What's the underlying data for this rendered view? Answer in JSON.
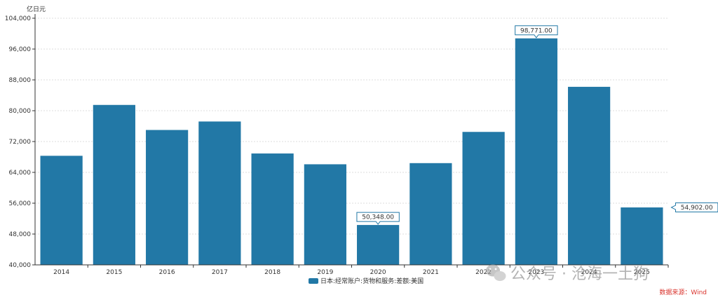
{
  "chart_data": {
    "type": "bar",
    "unit_label": "亿日元",
    "categories": [
      "2014",
      "2015",
      "2016",
      "2017",
      "2018",
      "2019",
      "2020",
      "2021",
      "2022",
      "2023",
      "2024",
      "2025"
    ],
    "series": [
      {
        "name": "日本:经常账户:货物和服务:差额:美国",
        "color": "#2278a6",
        "values": [
          68300,
          81500,
          75000,
          77200,
          68900,
          66100,
          50348,
          66400,
          74500,
          98771,
          86200,
          54902
        ]
      }
    ],
    "data_labels": [
      {
        "category": "2020",
        "text": "50,348.00"
      },
      {
        "category": "2023",
        "text": "98,771.00"
      },
      {
        "category": "2025",
        "text": "54,902.00"
      }
    ],
    "yticks": [
      "40,000",
      "48,000",
      "56,000",
      "64,000",
      "72,000",
      "80,000",
      "88,000",
      "96,000",
      "104,000"
    ],
    "ylim": [
      40000,
      104000
    ],
    "grid": true,
    "legend_position": "bottom-center"
  },
  "source": {
    "text": "数据来源：Wind",
    "color": "#d9322b"
  },
  "watermark": {
    "text": "公众号 · 沧海一土狗"
  }
}
